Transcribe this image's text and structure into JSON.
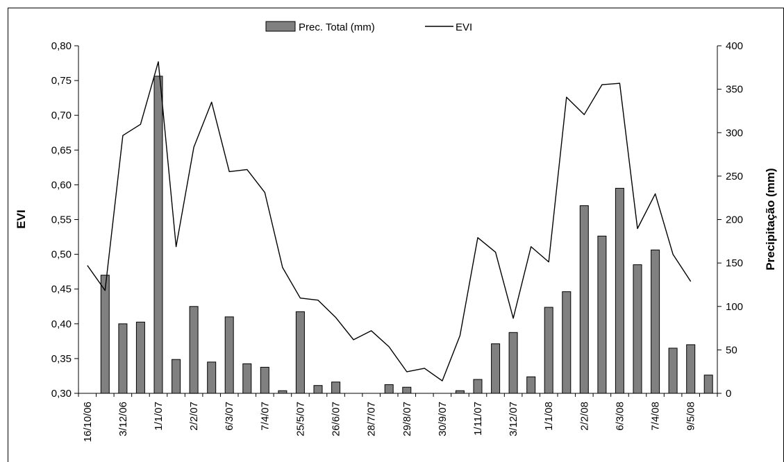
{
  "chart_data": {
    "type": "bar+line",
    "title": "",
    "legend": {
      "placement": "top-center",
      "bar_label": "Prec. Total (mm)",
      "line_label": "EVI"
    },
    "y_left": {
      "label": "EVI",
      "range": [
        0.3,
        0.8
      ],
      "ticks": [
        "0,30",
        "0,35",
        "0,40",
        "0,45",
        "0,50",
        "0,55",
        "0,60",
        "0,65",
        "0,70",
        "0,75",
        "0,80"
      ],
      "tick_values": [
        0.3,
        0.35,
        0.4,
        0.45,
        0.5,
        0.55,
        0.6,
        0.65,
        0.7,
        0.75,
        0.8
      ]
    },
    "y_right": {
      "label": "Precipitação (mm)",
      "range": [
        0,
        400
      ],
      "ticks": [
        "0",
        "50",
        "100",
        "150",
        "200",
        "250",
        "300",
        "350",
        "400"
      ],
      "tick_values": [
        0,
        50,
        100,
        150,
        200,
        250,
        300,
        350,
        400
      ]
    },
    "x_tick_labels": [
      {
        "label": "16/10/06",
        "index": 0
      },
      {
        "label": "3/12/06",
        "index": 2
      },
      {
        "label": "1/1/07",
        "index": 4
      },
      {
        "label": "2/2/07",
        "index": 6
      },
      {
        "label": "6/3/07",
        "index": 8
      },
      {
        "label": "7/4/07",
        "index": 10
      },
      {
        "label": "25/5/07",
        "index": 12
      },
      {
        "label": "26/6/07",
        "index": 14
      },
      {
        "label": "28/7/07",
        "index": 16
      },
      {
        "label": "29/8/07",
        "index": 18
      },
      {
        "label": "30/9/07",
        "index": 20
      },
      {
        "label": "1/11/07",
        "index": 22
      },
      {
        "label": "3/12/07",
        "index": 24
      },
      {
        "label": "1/1/08",
        "index": 26
      },
      {
        "label": "2/2/08",
        "index": 28
      },
      {
        "label": "6/3/08",
        "index": 30
      },
      {
        "label": "7/4/08",
        "index": 32
      },
      {
        "label": "9/5/08",
        "index": 34
      }
    ],
    "series": [
      {
        "name": "Prec. Total (mm)",
        "type": "bar",
        "color": "#808080",
        "values": [
          0,
          136,
          80,
          82,
          365,
          39,
          100,
          36,
          88,
          34,
          30,
          3,
          94,
          9,
          13,
          0,
          0,
          10,
          7,
          0,
          0,
          3,
          16,
          57,
          70,
          19,
          99,
          117,
          216,
          181,
          236,
          148,
          165,
          52,
          56,
          21
        ]
      },
      {
        "name": "EVI",
        "type": "line",
        "color": "#000000",
        "values": [
          0.484,
          0.448,
          0.671,
          0.687,
          0.777,
          0.511,
          0.654,
          0.719,
          0.619,
          0.622,
          0.589,
          0.481,
          0.437,
          0.434,
          0.409,
          0.377,
          0.39,
          0.367,
          0.331,
          0.336,
          0.318,
          0.383,
          0.524,
          0.503,
          0.408,
          0.511,
          0.489,
          0.726,
          0.701,
          0.744,
          0.746,
          0.537,
          0.587,
          0.5,
          0.461
        ]
      }
    ],
    "grid": false
  }
}
